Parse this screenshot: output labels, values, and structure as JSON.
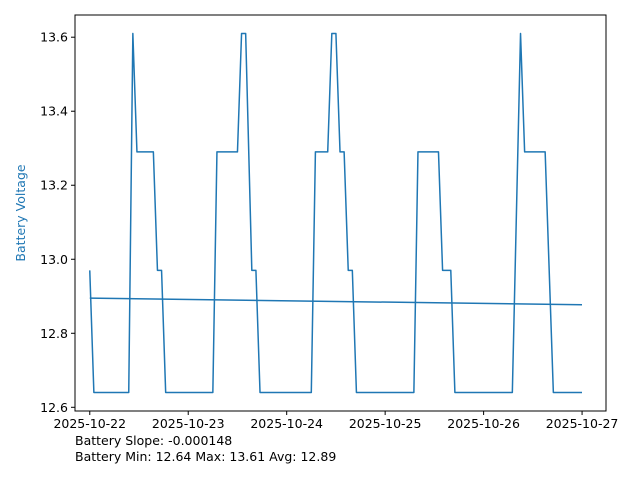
{
  "chart_data": {
    "type": "line",
    "title": "",
    "xlabel": "",
    "ylabel": "Battery Voltage",
    "x_ticks": [
      "2025-10-22",
      "2025-10-23",
      "2025-10-24",
      "2025-10-25",
      "2025-10-26",
      "2025-10-27"
    ],
    "y_ticks": [
      12.6,
      12.8,
      13.0,
      13.2,
      13.4,
      13.6
    ],
    "xlim": [
      "2025-10-21T20:24",
      "2025-10-27T05:50"
    ],
    "ylim": [
      12.59,
      13.66
    ],
    "grid": false,
    "colors": {
      "series": "#1f77b4",
      "ylabel": "#1f77b4"
    },
    "series": [
      {
        "kind": "voltage",
        "points": [
          [
            "2025-10-22T00:00",
            12.97
          ],
          [
            "2025-10-22T01:00",
            12.64
          ],
          [
            "2025-10-22T09:30",
            12.64
          ],
          [
            "2025-10-22T10:30",
            13.61
          ],
          [
            "2025-10-22T11:30",
            13.29
          ],
          [
            "2025-10-22T15:30",
            13.29
          ],
          [
            "2025-10-22T16:30",
            12.97
          ],
          [
            "2025-10-22T17:30",
            12.97
          ],
          [
            "2025-10-22T18:30",
            12.64
          ],
          [
            "2025-10-23T06:00",
            12.64
          ],
          [
            "2025-10-23T07:00",
            13.29
          ],
          [
            "2025-10-23T12:00",
            13.29
          ],
          [
            "2025-10-23T13:00",
            13.61
          ],
          [
            "2025-10-23T14:00",
            13.61
          ],
          [
            "2025-10-23T15:30",
            12.97
          ],
          [
            "2025-10-23T16:30",
            12.97
          ],
          [
            "2025-10-23T17:30",
            12.64
          ],
          [
            "2025-10-24T06:00",
            12.64
          ],
          [
            "2025-10-24T07:00",
            13.29
          ],
          [
            "2025-10-24T10:00",
            13.29
          ],
          [
            "2025-10-24T11:00",
            13.61
          ],
          [
            "2025-10-24T12:00",
            13.61
          ],
          [
            "2025-10-24T13:00",
            13.29
          ],
          [
            "2025-10-24T14:00",
            13.29
          ],
          [
            "2025-10-24T15:00",
            12.97
          ],
          [
            "2025-10-24T16:00",
            12.97
          ],
          [
            "2025-10-24T17:00",
            12.64
          ],
          [
            "2025-10-25T07:00",
            12.64
          ],
          [
            "2025-10-25T08:00",
            13.29
          ],
          [
            "2025-10-25T13:00",
            13.29
          ],
          [
            "2025-10-25T14:00",
            12.97
          ],
          [
            "2025-10-25T16:00",
            12.97
          ],
          [
            "2025-10-25T17:00",
            12.64
          ],
          [
            "2025-10-26T07:00",
            12.64
          ],
          [
            "2025-10-26T09:00",
            13.61
          ],
          [
            "2025-10-26T10:00",
            13.29
          ],
          [
            "2025-10-26T15:00",
            13.29
          ],
          [
            "2025-10-26T17:00",
            12.64
          ],
          [
            "2025-10-26T23:59",
            12.64
          ]
        ]
      },
      {
        "kind": "trend",
        "points": [
          [
            "2025-10-22T00:00",
            12.895
          ],
          [
            "2025-10-26T23:59",
            12.877
          ]
        ]
      }
    ]
  },
  "stats": {
    "line1": "Battery Slope: -0.000148",
    "line2": "Battery Min: 12.64 Max: 13.61 Avg: 12.89"
  }
}
